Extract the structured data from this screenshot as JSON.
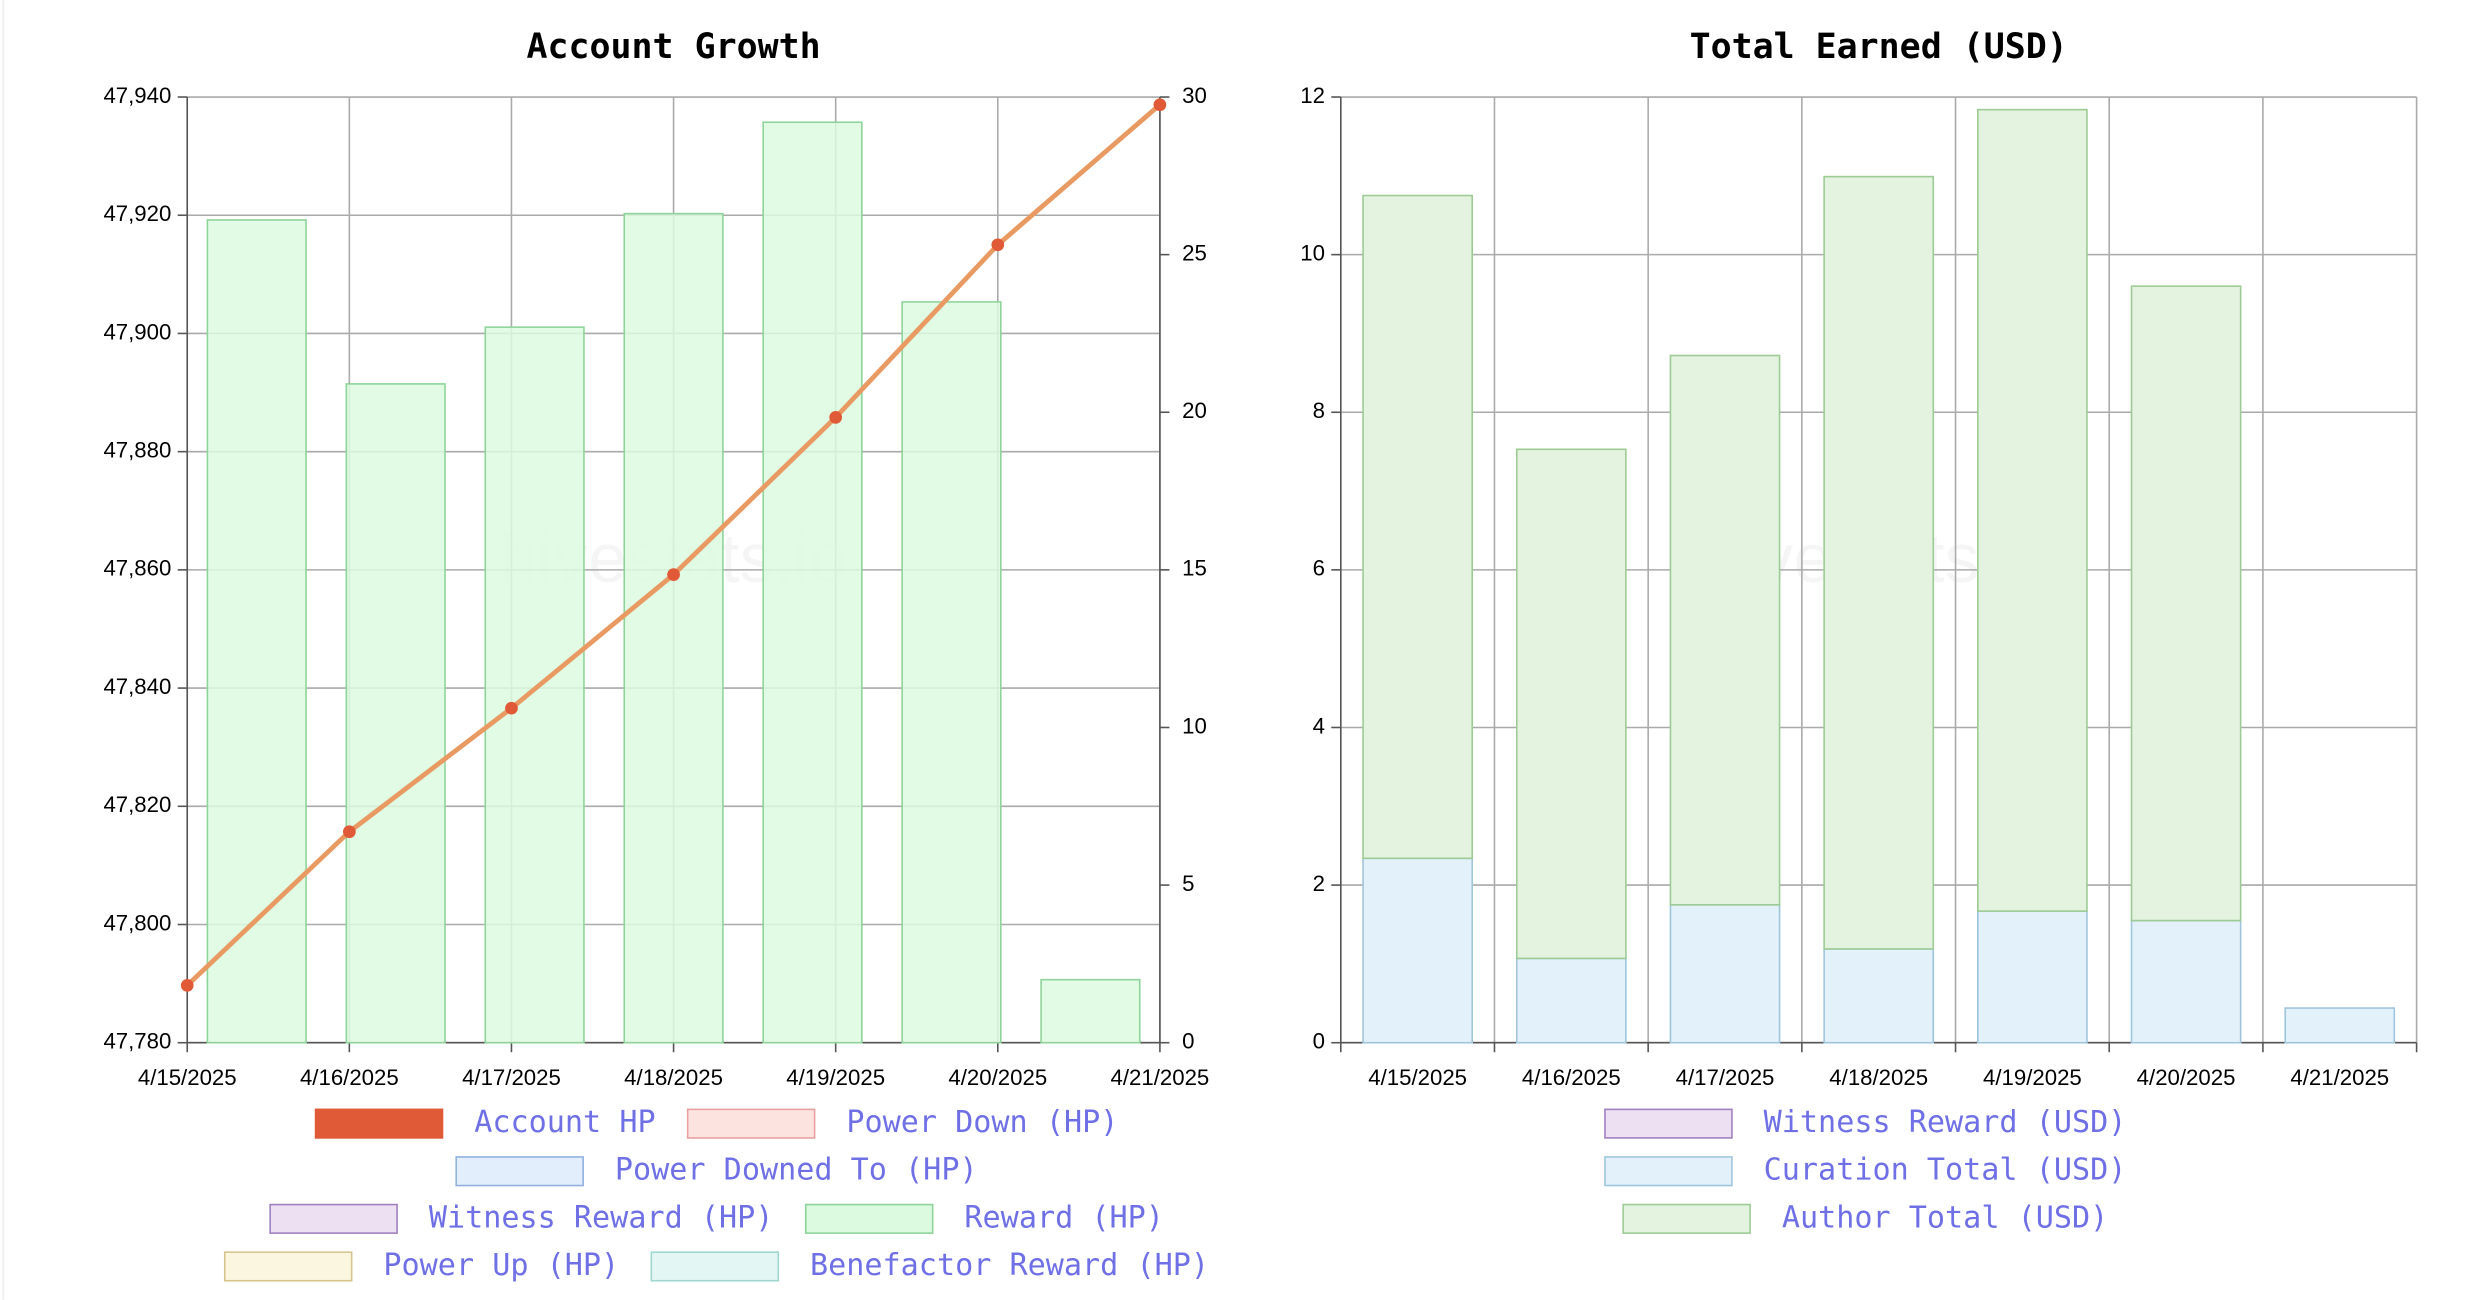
{
  "chart_data": [
    {
      "type": "bar-line",
      "title": "Account Growth",
      "watermark": "hivestats.io",
      "categories": [
        "4/15/2025",
        "4/16/2025",
        "4/17/2025",
        "4/18/2025",
        "4/19/2025",
        "4/20/2025",
        "4/21/2025"
      ],
      "ylim": [
        47780,
        47940
      ],
      "yticks": [
        {
          "value": 47780,
          "label": "47,780"
        },
        {
          "value": 47800,
          "label": "47,800"
        },
        {
          "value": 47820,
          "label": "47,820"
        },
        {
          "value": 47840,
          "label": "47,840"
        },
        {
          "value": 47860,
          "label": "47,860"
        },
        {
          "value": 47880,
          "label": "47,880"
        },
        {
          "value": 47900,
          "label": "47,900"
        },
        {
          "value": 47920,
          "label": "47,920"
        },
        {
          "value": 47940,
          "label": "47,940"
        }
      ],
      "y2lim": [
        0,
        30
      ],
      "y2ticks": [
        0,
        5,
        10,
        15,
        20,
        25,
        30
      ],
      "grid": true,
      "series": [
        {
          "name": "Account HP",
          "kind": "line",
          "color": "#e05a37",
          "line_color": "#e89a62",
          "values": [
            47789.7,
            47815.7,
            47836.6,
            47859.2,
            47885.8,
            47915,
            47938.7
          ]
        },
        {
          "name": "Power Down (HP)",
          "color": "#fde3e0",
          "border": "#e8a0a0"
        },
        {
          "name": "Power Downed To (HP)",
          "color": "#e3eefd",
          "border": "#90b0e0"
        },
        {
          "name": "Witness Reward (HP)",
          "color": "#ece0f2",
          "border": "#a080c0"
        },
        {
          "name": "Reward (HP)",
          "kind": "bar",
          "axis": "y2",
          "color": "#dcfadf",
          "border": "#8ed49a",
          "values": [
            26.1,
            20.9,
            22.7,
            26.3,
            29.2,
            23.5,
            2.0
          ]
        },
        {
          "name": "Power Up (HP)",
          "color": "#fbf6e0",
          "border": "#d6c48e"
        },
        {
          "name": "Benefactor Reward (HP)",
          "color": "#e3f6f3",
          "border": "#a0d8d0"
        }
      ]
    },
    {
      "type": "stacked-bar",
      "title": "Total Earned (USD)",
      "watermark": "hivestats.io",
      "categories": [
        "4/15/2025",
        "4/16/2025",
        "4/17/2025",
        "4/18/2025",
        "4/19/2025",
        "4/20/2025",
        "4/21/2025"
      ],
      "ylim": [
        0,
        12
      ],
      "yticks": [
        0,
        2,
        4,
        6,
        8,
        10,
        12
      ],
      "grid": true,
      "series": [
        {
          "name": "Witness Reward (USD)",
          "color": "#ece0f2",
          "border": "#a080c0"
        },
        {
          "name": "Curation Total (USD)",
          "color": "#e3f1fa",
          "border": "#9fc5dc",
          "values": [
            2.34,
            1.07,
            1.75,
            1.19,
            1.67,
            1.55,
            0.44
          ]
        },
        {
          "name": "Author Total (USD)",
          "color": "#e3f3df",
          "border": "#9dcb94",
          "values": [
            8.41,
            6.46,
            6.97,
            9.8,
            10.17,
            8.05,
            null
          ]
        }
      ]
    }
  ]
}
